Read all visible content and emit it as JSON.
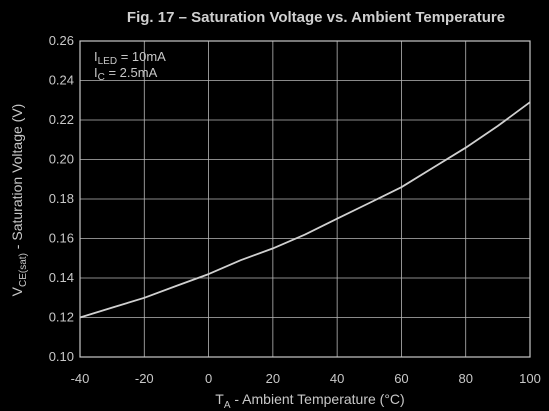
{
  "chart_data": {
    "type": "line",
    "title": "Fig. 17 – Saturation Voltage vs. Ambient Temperature",
    "xlabel": {
      "main": "T",
      "sub": "A",
      "rest": " - Ambient Temperature (°C)"
    },
    "ylabel": {
      "main": "V",
      "sub": "CE(sat)",
      "rest": " - Saturation Voltage (V)"
    },
    "xlim": [
      -40,
      100
    ],
    "ylim": [
      0.1,
      0.26
    ],
    "xticks": [
      -40,
      -20,
      0,
      20,
      40,
      60,
      80,
      100
    ],
    "yticks": [
      0.1,
      0.12,
      0.14,
      0.16,
      0.18,
      0.2,
      0.22,
      0.24,
      0.26
    ],
    "grid": true,
    "annotations": [
      {
        "main": "I",
        "sub": "LED",
        "rest": " = 10mA"
      },
      {
        "main": "I",
        "sub": "C",
        "rest": " = 2.5mA"
      }
    ],
    "series": [
      {
        "x": [
          -40,
          -30,
          -20,
          -10,
          0,
          10,
          20,
          30,
          40,
          50,
          60,
          70,
          80,
          90,
          100
        ],
        "values": [
          0.12,
          0.125,
          0.13,
          0.136,
          0.142,
          0.149,
          0.155,
          0.162,
          0.17,
          0.178,
          0.186,
          0.196,
          0.206,
          0.217,
          0.229
        ]
      }
    ],
    "colors": {
      "background": "#000000",
      "line": "#d0d0d0",
      "grid": "#b8b8b8",
      "text": "#c8c8c8"
    }
  }
}
